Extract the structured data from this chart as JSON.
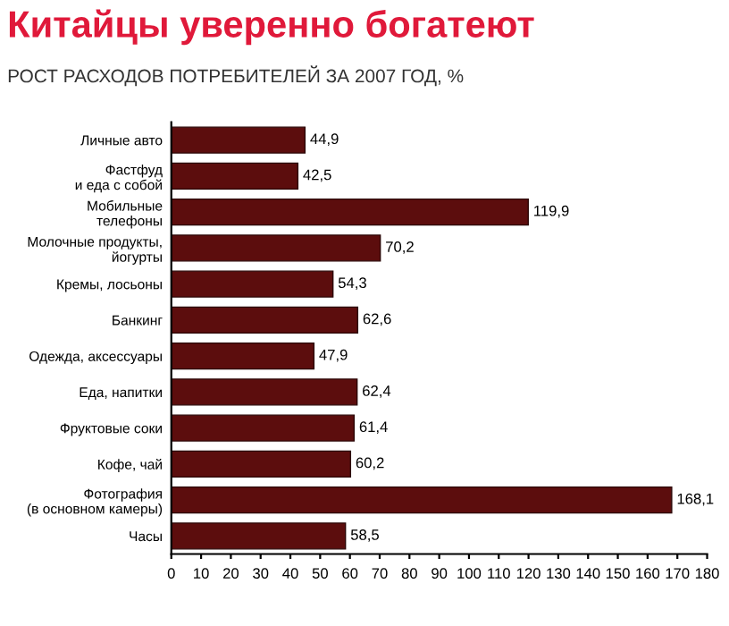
{
  "chart_data": {
    "type": "bar",
    "orientation": "horizontal",
    "title": "Китайцы уверенно богатеют",
    "subtitle": "РОСТ РАСХОДОВ ПОТРЕБИТЕЛЕЙ ЗА 2007 ГОД, %",
    "categories": [
      "Личные авто",
      "Фастфуд\nи еда с собой",
      "Мобильные\nтелефоны",
      "Молочные продукты,\nйогурты",
      "Кремы, лосьоны",
      "Банкинг",
      "Одежда, аксессуары",
      "Еда, напитки",
      "Фруктовые соки",
      "Кофе, чай",
      "Фотография\n(в основном камеры)",
      "Часы"
    ],
    "values": [
      44.9,
      42.5,
      119.9,
      70.2,
      54.3,
      62.6,
      47.9,
      62.4,
      61.4,
      60.2,
      168.1,
      58.5
    ],
    "value_labels": [
      "44,9",
      "42,5",
      "119,9",
      "70,2",
      "54,3",
      "62,6",
      "47,9",
      "62,4",
      "61,4",
      "60,2",
      "168,1",
      "58,5"
    ],
    "color": "#5c0d0d",
    "xlim": [
      0,
      180
    ],
    "xticks": [
      0,
      10,
      20,
      30,
      40,
      50,
      60,
      70,
      80,
      90,
      100,
      110,
      120,
      130,
      140,
      150,
      160,
      170,
      180
    ],
    "grid": false,
    "legend": false
  }
}
